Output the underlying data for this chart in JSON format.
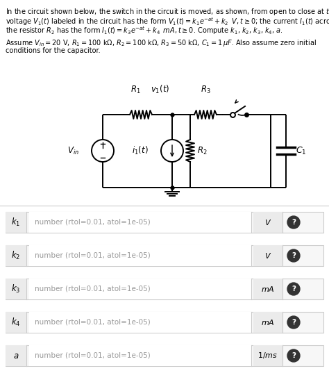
{
  "rows": [
    {
      "label": "$k_1$",
      "placeholder": "number (rtol=0.01, atol=1e-05)",
      "unit": "$V$"
    },
    {
      "label": "$k_2$",
      "placeholder": "number (rtol=0.01, atol=1e-05)",
      "unit": "$V$"
    },
    {
      "label": "$k_3$",
      "placeholder": "number (rtol=0.01, atol=1e-05)",
      "unit": "$mA$"
    },
    {
      "label": "$k_4$",
      "placeholder": "number (rtol=0.01, atol=1e-05)",
      "unit": "$mA$"
    },
    {
      "label": "$a$",
      "placeholder": "number (rtol=0.01, atol=1e-05)",
      "unit": "$1/ms$"
    }
  ],
  "bg_color": "#ffffff",
  "text_color": "#000000",
  "separator_color": "#cccccc",
  "row_bg": "#f7f7f7",
  "row_border": "#cccccc",
  "input_bg": "#ffffff",
  "unit_bg": "#eeeeee",
  "lbl_bg": "#eeeeee",
  "qmark_color": "#333333",
  "placeholder_color": "#999999"
}
